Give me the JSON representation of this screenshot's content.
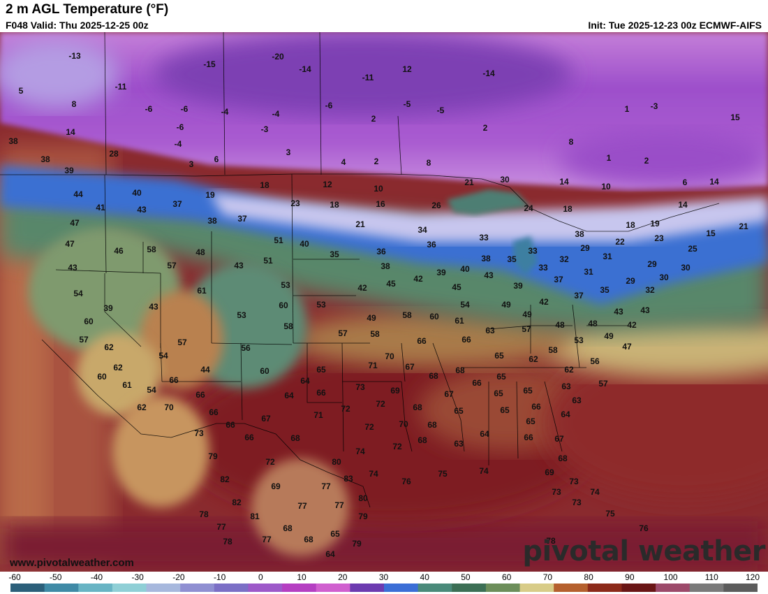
{
  "header": {
    "title": "2 m AGL Temperature (°F)",
    "valid": "F048 Valid: Thu 2025-12-25 00z",
    "init": "Init: Tue 2025-12-23 00z ECMWF-AIFS"
  },
  "footer": {
    "website": "www.pivotalweather.com",
    "logo": "pivotal weather"
  },
  "colorbar": {
    "ticks": [
      "-60",
      "-50",
      "-40",
      "-30",
      "-20",
      "-10",
      "0",
      "10",
      "20",
      "30",
      "40",
      "50",
      "60",
      "70",
      "80",
      "90",
      "100",
      "110",
      "120"
    ],
    "colors": [
      "#2b5f7a",
      "#3f8aa6",
      "#68b4c4",
      "#8fcfd6",
      "#a7b8dd",
      "#8f8fd2",
      "#7b6fc6",
      "#9d59c9",
      "#b53fc2",
      "#d060cf",
      "#6c3bb0",
      "#3b6ed6",
      "#4a8a7a",
      "#3c6f55",
      "#6c8e5a",
      "#d8cc88",
      "#b5602e",
      "#8c2a1a",
      "#6a1616",
      "#9c4a6a",
      "#7a7a7a",
      "#5c5c5c"
    ]
  },
  "map_values": [
    {
      "t": "-13",
      "p": [
        107,
        81
      ]
    },
    {
      "t": "-15",
      "p": [
        300,
        93
      ]
    },
    {
      "t": "-20",
      "p": [
        398,
        82
      ]
    },
    {
      "t": "-14",
      "p": [
        437,
        100
      ]
    },
    {
      "t": "12",
      "p": [
        583,
        100
      ]
    },
    {
      "t": "-14",
      "p": [
        700,
        106
      ]
    },
    {
      "t": "5",
      "p": [
        30,
        131
      ]
    },
    {
      "t": "-11",
      "p": [
        173,
        125
      ]
    },
    {
      "t": "-11",
      "p": [
        527,
        112
      ]
    },
    {
      "t": "8",
      "p": [
        106,
        150
      ]
    },
    {
      "t": "-6",
      "p": [
        213,
        157
      ]
    },
    {
      "t": "-6",
      "p": [
        264,
        157
      ]
    },
    {
      "t": "-4",
      "p": [
        322,
        161
      ]
    },
    {
      "t": "-4",
      "p": [
        395,
        164
      ]
    },
    {
      "t": "-6",
      "p": [
        471,
        152
      ]
    },
    {
      "t": "-5",
      "p": [
        583,
        150
      ]
    },
    {
      "t": "-5",
      "p": [
        631,
        159
      ]
    },
    {
      "t": "1",
      "p": [
        898,
        157
      ]
    },
    {
      "t": "-3",
      "p": [
        937,
        153
      ]
    },
    {
      "t": "15",
      "p": [
        1053,
        169
      ]
    },
    {
      "t": "14",
      "p": [
        101,
        190
      ]
    },
    {
      "t": "-6",
      "p": [
        258,
        183
      ]
    },
    {
      "t": "-3",
      "p": [
        379,
        186
      ]
    },
    {
      "t": "2",
      "p": [
        535,
        171
      ]
    },
    {
      "t": "2",
      "p": [
        695,
        184
      ]
    },
    {
      "t": "38",
      "p": [
        19,
        203
      ]
    },
    {
      "t": "-4",
      "p": [
        255,
        207
      ]
    },
    {
      "t": "28",
      "p": [
        163,
        221
      ]
    },
    {
      "t": "6",
      "p": [
        310,
        229
      ]
    },
    {
      "t": "3",
      "p": [
        274,
        236
      ]
    },
    {
      "t": "3",
      "p": [
        413,
        219
      ]
    },
    {
      "t": "4",
      "p": [
        492,
        233
      ]
    },
    {
      "t": "2",
      "p": [
        539,
        232
      ]
    },
    {
      "t": "8",
      "p": [
        614,
        234
      ]
    },
    {
      "t": "8",
      "p": [
        818,
        204
      ]
    },
    {
      "t": "1",
      "p": [
        872,
        227
      ]
    },
    {
      "t": "2",
      "p": [
        926,
        231
      ]
    },
    {
      "t": "38",
      "p": [
        65,
        229
      ]
    },
    {
      "t": "39",
      "p": [
        99,
        245
      ]
    },
    {
      "t": "44",
      "p": [
        112,
        279
      ]
    },
    {
      "t": "40",
      "p": [
        196,
        277
      ]
    },
    {
      "t": "37",
      "p": [
        254,
        293
      ]
    },
    {
      "t": "19",
      "p": [
        301,
        280
      ]
    },
    {
      "t": "18",
      "p": [
        379,
        266
      ]
    },
    {
      "t": "12",
      "p": [
        469,
        265
      ]
    },
    {
      "t": "10",
      "p": [
        542,
        271
      ]
    },
    {
      "t": "21",
      "p": [
        672,
        262
      ]
    },
    {
      "t": "30",
      "p": [
        723,
        258
      ]
    },
    {
      "t": "14",
      "p": [
        808,
        261
      ]
    },
    {
      "t": "10",
      "p": [
        868,
        268
      ]
    },
    {
      "t": "6",
      "p": [
        981,
        262
      ]
    },
    {
      "t": "14",
      "p": [
        1023,
        261
      ]
    },
    {
      "t": "41",
      "p": [
        144,
        298
      ]
    },
    {
      "t": "43",
      "p": [
        203,
        301
      ]
    },
    {
      "t": "23",
      "p": [
        423,
        292
      ]
    },
    {
      "t": "18",
      "p": [
        479,
        294
      ]
    },
    {
      "t": "16",
      "p": [
        545,
        293
      ]
    },
    {
      "t": "26",
      "p": [
        625,
        295
      ]
    },
    {
      "t": "24",
      "p": [
        757,
        299
      ]
    },
    {
      "t": "18",
      "p": [
        813,
        300
      ]
    },
    {
      "t": "14",
      "p": [
        978,
        294
      ]
    },
    {
      "t": "47",
      "p": [
        107,
        320
      ]
    },
    {
      "t": "38",
      "p": [
        304,
        317
      ]
    },
    {
      "t": "37",
      "p": [
        347,
        314
      ]
    },
    {
      "t": "21",
      "p": [
        516,
        322
      ]
    },
    {
      "t": "34",
      "p": [
        605,
        330
      ]
    },
    {
      "t": "18",
      "p": [
        903,
        323
      ]
    },
    {
      "t": "19",
      "p": [
        938,
        321
      ]
    },
    {
      "t": "21",
      "p": [
        1065,
        325
      ]
    },
    {
      "t": "47",
      "p": [
        100,
        350
      ]
    },
    {
      "t": "46",
      "p": [
        170,
        360
      ]
    },
    {
      "t": "58",
      "p": [
        217,
        358
      ]
    },
    {
      "t": "48",
      "p": [
        287,
        362
      ]
    },
    {
      "t": "51",
      "p": [
        399,
        345
      ]
    },
    {
      "t": "40",
      "p": [
        436,
        350
      ]
    },
    {
      "t": "35",
      "p": [
        479,
        365
      ]
    },
    {
      "t": "36",
      "p": [
        546,
        361
      ]
    },
    {
      "t": "36",
      "p": [
        618,
        351
      ]
    },
    {
      "t": "33",
      "p": [
        693,
        341
      ]
    },
    {
      "t": "38",
      "p": [
        830,
        336
      ]
    },
    {
      "t": "22",
      "p": [
        888,
        347
      ]
    },
    {
      "t": "23",
      "p": [
        944,
        342
      ]
    },
    {
      "t": "15",
      "p": [
        1018,
        335
      ]
    },
    {
      "t": "25",
      "p": [
        992,
        357
      ]
    },
    {
      "t": "43",
      "p": [
        104,
        384
      ]
    },
    {
      "t": "57",
      "p": [
        246,
        381
      ]
    },
    {
      "t": "43",
      "p": [
        342,
        381
      ]
    },
    {
      "t": "51",
      "p": [
        384,
        374
      ]
    },
    {
      "t": "38",
      "p": [
        552,
        382
      ]
    },
    {
      "t": "33",
      "p": [
        763,
        360
      ]
    },
    {
      "t": "35",
      "p": [
        733,
        372
      ]
    },
    {
      "t": "38",
      "p": [
        696,
        371
      ]
    },
    {
      "t": "29",
      "p": [
        838,
        356
      ]
    },
    {
      "t": "31",
      "p": [
        870,
        368
      ]
    },
    {
      "t": "32",
      "p": [
        808,
        372
      ]
    },
    {
      "t": "33",
      "p": [
        778,
        384
      ]
    },
    {
      "t": "40",
      "p": [
        666,
        386
      ]
    },
    {
      "t": "39",
      "p": [
        632,
        391
      ]
    },
    {
      "t": "29",
      "p": [
        934,
        379
      ]
    },
    {
      "t": "30",
      "p": [
        982,
        384
      ]
    },
    {
      "t": "31",
      "p": [
        843,
        390
      ]
    },
    {
      "t": "43",
      "p": [
        700,
        395
      ]
    },
    {
      "t": "42",
      "p": [
        599,
        400
      ]
    },
    {
      "t": "45",
      "p": [
        560,
        407
      ]
    },
    {
      "t": "37",
      "p": [
        800,
        401
      ]
    },
    {
      "t": "30",
      "p": [
        951,
        398
      ]
    },
    {
      "t": "29",
      "p": [
        903,
        403
      ]
    },
    {
      "t": "54",
      "p": [
        112,
        421
      ]
    },
    {
      "t": "61",
      "p": [
        289,
        417
      ]
    },
    {
      "t": "53",
      "p": [
        409,
        409
      ]
    },
    {
      "t": "42",
      "p": [
        519,
        413
      ]
    },
    {
      "t": "45",
      "p": [
        654,
        412
      ]
    },
    {
      "t": "39",
      "p": [
        742,
        410
      ]
    },
    {
      "t": "35",
      "p": [
        866,
        416
      ]
    },
    {
      "t": "32",
      "p": [
        931,
        416
      ]
    },
    {
      "t": "37",
      "p": [
        829,
        424
      ]
    },
    {
      "t": "42",
      "p": [
        779,
        433
      ]
    },
    {
      "t": "39",
      "p": [
        155,
        442
      ]
    },
    {
      "t": "43",
      "p": [
        220,
        440
      ]
    },
    {
      "t": "60",
      "p": [
        406,
        438
      ]
    },
    {
      "t": "53",
      "p": [
        460,
        437
      ]
    },
    {
      "t": "54",
      "p": [
        666,
        437
      ]
    },
    {
      "t": "49",
      "p": [
        725,
        437
      ]
    },
    {
      "t": "43",
      "p": [
        886,
        447
      ]
    },
    {
      "t": "43",
      "p": [
        924,
        445
      ]
    },
    {
      "t": "60",
      "p": [
        127,
        461
      ]
    },
    {
      "t": "53",
      "p": [
        346,
        452
      ]
    },
    {
      "t": "58",
      "p": [
        413,
        468
      ]
    },
    {
      "t": "49",
      "p": [
        532,
        456
      ]
    },
    {
      "t": "58",
      "p": [
        583,
        452
      ]
    },
    {
      "t": "60",
      "p": [
        622,
        454
      ]
    },
    {
      "t": "61",
      "p": [
        658,
        460
      ]
    },
    {
      "t": "49",
      "p": [
        755,
        451
      ]
    },
    {
      "t": "48",
      "p": [
        802,
        466
      ]
    },
    {
      "t": "48",
      "p": [
        849,
        464
      ]
    },
    {
      "t": "42",
      "p": [
        905,
        466
      ]
    },
    {
      "t": "57",
      "p": [
        120,
        487
      ]
    },
    {
      "t": "57",
      "p": [
        491,
        478
      ]
    },
    {
      "t": "58",
      "p": [
        537,
        479
      ]
    },
    {
      "t": "63",
      "p": [
        702,
        474
      ]
    },
    {
      "t": "57",
      "p": [
        754,
        472
      ]
    },
    {
      "t": "49",
      "p": [
        872,
        482
      ]
    },
    {
      "t": "57",
      "p": [
        261,
        491
      ]
    },
    {
      "t": "56",
      "p": [
        352,
        499
      ]
    },
    {
      "t": "66",
      "p": [
        604,
        489
      ]
    },
    {
      "t": "66",
      "p": [
        668,
        487
      ]
    },
    {
      "t": "53",
      "p": [
        829,
        488
      ]
    },
    {
      "t": "47",
      "p": [
        898,
        497
      ]
    },
    {
      "t": "62",
      "p": [
        156,
        498
      ]
    },
    {
      "t": "54",
      "p": [
        234,
        510
      ]
    },
    {
      "t": "70",
      "p": [
        558,
        511
      ]
    },
    {
      "t": "65",
      "p": [
        715,
        510
      ]
    },
    {
      "t": "58",
      "p": [
        792,
        502
      ]
    },
    {
      "t": "62",
      "p": [
        764,
        515
      ]
    },
    {
      "t": "56",
      "p": [
        852,
        518
      ]
    },
    {
      "t": "62",
      "p": [
        169,
        527
      ]
    },
    {
      "t": "44",
      "p": [
        294,
        530
      ]
    },
    {
      "t": "60",
      "p": [
        379,
        532
      ]
    },
    {
      "t": "65",
      "p": [
        460,
        530
      ]
    },
    {
      "t": "71",
      "p": [
        534,
        524
      ]
    },
    {
      "t": "67",
      "p": [
        587,
        526
      ]
    },
    {
      "t": "68",
      "p": [
        659,
        531
      ]
    },
    {
      "t": "62",
      "p": [
        815,
        530
      ]
    },
    {
      "t": "60",
      "p": [
        146,
        540
      ]
    },
    {
      "t": "66",
      "p": [
        249,
        545
      ]
    },
    {
      "t": "64",
      "p": [
        437,
        546
      ]
    },
    {
      "t": "68",
      "p": [
        621,
        539
      ]
    },
    {
      "t": "65",
      "p": [
        718,
        540
      ]
    },
    {
      "t": "61",
      "p": [
        182,
        552
      ]
    },
    {
      "t": "54",
      "p": [
        217,
        559
      ]
    },
    {
      "t": "66",
      "p": [
        683,
        549
      ]
    },
    {
      "t": "65",
      "p": [
        756,
        560
      ]
    },
    {
      "t": "63",
      "p": [
        811,
        554
      ]
    },
    {
      "t": "57",
      "p": [
        864,
        550
      ]
    },
    {
      "t": "73",
      "p": [
        516,
        555
      ]
    },
    {
      "t": "69",
      "p": [
        566,
        560
      ]
    },
    {
      "t": "66",
      "p": [
        287,
        566
      ]
    },
    {
      "t": "64",
      "p": [
        414,
        567
      ]
    },
    {
      "t": "66",
      "p": [
        460,
        563
      ]
    },
    {
      "t": "67",
      "p": [
        643,
        565
      ]
    },
    {
      "t": "65",
      "p": [
        714,
        564
      ]
    },
    {
      "t": "63",
      "p": [
        826,
        574
      ]
    },
    {
      "t": "62",
      "p": [
        203,
        584
      ]
    },
    {
      "t": "70",
      "p": [
        242,
        584
      ]
    },
    {
      "t": "72",
      "p": [
        495,
        586
      ]
    },
    {
      "t": "72",
      "p": [
        545,
        579
      ]
    },
    {
      "t": "68",
      "p": [
        598,
        584
      ]
    },
    {
      "t": "65",
      "p": [
        657,
        589
      ]
    },
    {
      "t": "65",
      "p": [
        723,
        588
      ]
    },
    {
      "t": "66",
      "p": [
        768,
        583
      ]
    },
    {
      "t": "64",
      "p": [
        810,
        594
      ]
    },
    {
      "t": "66",
      "p": [
        306,
        591
      ]
    },
    {
      "t": "71",
      "p": [
        456,
        595
      ]
    },
    {
      "t": "66",
      "p": [
        330,
        609
      ]
    },
    {
      "t": "67",
      "p": [
        381,
        600
      ]
    },
    {
      "t": "70",
      "p": [
        578,
        608
      ]
    },
    {
      "t": "68",
      "p": [
        619,
        609
      ]
    },
    {
      "t": "65",
      "p": [
        760,
        604
      ]
    },
    {
      "t": "73",
      "p": [
        285,
        621
      ]
    },
    {
      "t": "72",
      "p": [
        529,
        612
      ]
    },
    {
      "t": "68",
      "p": [
        423,
        628
      ]
    },
    {
      "t": "66",
      "p": [
        357,
        627
      ]
    },
    {
      "t": "72",
      "p": [
        569,
        640
      ]
    },
    {
      "t": "68",
      "p": [
        605,
        631
      ]
    },
    {
      "t": "64",
      "p": [
        694,
        622
      ]
    },
    {
      "t": "66",
      "p": [
        757,
        627
      ]
    },
    {
      "t": "67",
      "p": [
        801,
        629
      ]
    },
    {
      "t": "63",
      "p": [
        657,
        636
      ]
    },
    {
      "t": "74",
      "p": [
        516,
        647
      ]
    },
    {
      "t": "79",
      "p": [
        305,
        654
      ]
    },
    {
      "t": "72",
      "p": [
        387,
        662
      ]
    },
    {
      "t": "80",
      "p": [
        482,
        662
      ]
    },
    {
      "t": "68",
      "p": [
        806,
        657
      ]
    },
    {
      "t": "83",
      "p": [
        499,
        686
      ]
    },
    {
      "t": "74",
      "p": [
        535,
        679
      ]
    },
    {
      "t": "76",
      "p": [
        582,
        690
      ]
    },
    {
      "t": "75",
      "p": [
        634,
        679
      ]
    },
    {
      "t": "74",
      "p": [
        693,
        675
      ]
    },
    {
      "t": "69",
      "p": [
        787,
        677
      ]
    },
    {
      "t": "73",
      "p": [
        822,
        690
      ]
    },
    {
      "t": "82",
      "p": [
        322,
        687
      ]
    },
    {
      "t": "69",
      "p": [
        395,
        697
      ]
    },
    {
      "t": "77",
      "p": [
        467,
        697
      ]
    },
    {
      "t": "73",
      "p": [
        797,
        705
      ]
    },
    {
      "t": "74",
      "p": [
        852,
        705
      ]
    },
    {
      "t": "80",
      "p": [
        520,
        714
      ]
    },
    {
      "t": "82",
      "p": [
        339,
        720
      ]
    },
    {
      "t": "77",
      "p": [
        433,
        725
      ]
    },
    {
      "t": "77",
      "p": [
        486,
        724
      ]
    },
    {
      "t": "73",
      "p": [
        826,
        720
      ]
    },
    {
      "t": "78",
      "p": [
        292,
        737
      ]
    },
    {
      "t": "81",
      "p": [
        365,
        740
      ]
    },
    {
      "t": "79",
      "p": [
        520,
        740
      ]
    },
    {
      "t": "75",
      "p": [
        874,
        736
      ]
    },
    {
      "t": "77",
      "p": [
        317,
        755
      ]
    },
    {
      "t": "68",
      "p": [
        412,
        757
      ]
    },
    {
      "t": "65",
      "p": [
        480,
        765
      ]
    },
    {
      "t": "76",
      "p": [
        922,
        757
      ]
    },
    {
      "t": "78",
      "p": [
        326,
        776
      ]
    },
    {
      "t": "77",
      "p": [
        382,
        773
      ]
    },
    {
      "t": "68",
      "p": [
        442,
        773
      ]
    },
    {
      "t": "79",
      "p": [
        511,
        779
      ]
    },
    {
      "t": "78",
      "p": [
        789,
        775
      ]
    },
    {
      "t": "64",
      "p": [
        473,
        794
      ]
    }
  ]
}
